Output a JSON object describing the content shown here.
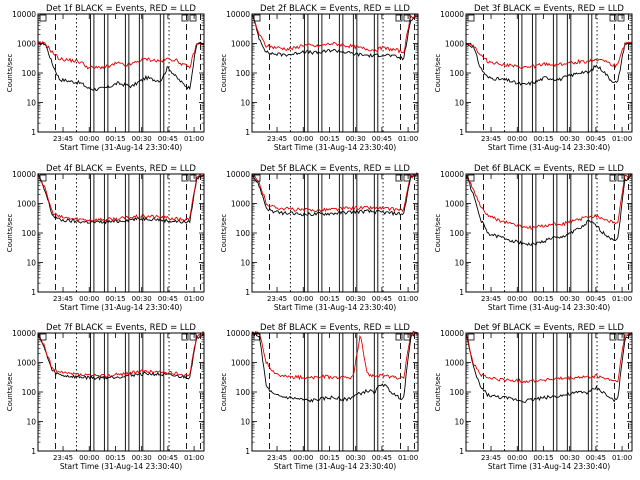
{
  "chart_data": {
    "type": "line",
    "panels": [
      {
        "title": "Det 1f BLACK = Events, RED = LLD",
        "red_base": 240,
        "black_base": 55,
        "red_values": [
          1000,
          1000,
          500,
          300,
          280,
          260,
          230,
          150,
          150,
          160,
          170,
          220,
          180,
          200,
          260,
          300,
          270,
          250,
          300,
          280,
          200,
          150,
          1000,
          1000
        ],
        "black_values": [
          1000,
          1000,
          200,
          60,
          55,
          50,
          45,
          30,
          28,
          30,
          35,
          45,
          40,
          35,
          50,
          70,
          60,
          55,
          160,
          80,
          45,
          30,
          1000,
          1000
        ]
      },
      {
        "title": "Det 2f BLACK = Events, RED = LLD",
        "red_base": 700,
        "red_values": [
          10000,
          2000,
          800,
          750,
          700,
          650,
          700,
          900,
          850,
          800,
          900,
          1000,
          950,
          850,
          800,
          700,
          650,
          600,
          700,
          650,
          600,
          500,
          8000,
          10000
        ],
        "black_values": [
          10000,
          1500,
          500,
          450,
          420,
          420,
          450,
          550,
          500,
          480,
          520,
          600,
          560,
          500,
          450,
          420,
          400,
          380,
          420,
          400,
          350,
          300,
          6000,
          10000
        ]
      },
      {
        "title": "Det 3f BLACK = Events, RED = LLD",
        "red_values": [
          1000,
          900,
          400,
          250,
          220,
          200,
          180,
          160,
          150,
          160,
          180,
          200,
          190,
          200,
          210,
          230,
          250,
          240,
          300,
          280,
          200,
          170,
          1000,
          1000
        ],
        "black_values": [
          1000,
          800,
          150,
          70,
          65,
          60,
          55,
          45,
          40,
          45,
          55,
          70,
          65,
          60,
          75,
          90,
          110,
          100,
          180,
          120,
          60,
          45,
          1000,
          1000
        ]
      },
      {
        "title": "Det 4f BLACK = Events, RED = LLD",
        "red_values": [
          10000,
          3000,
          500,
          350,
          320,
          300,
          290,
          280,
          280,
          285,
          290,
          300,
          320,
          340,
          360,
          370,
          360,
          340,
          320,
          300,
          290,
          280,
          8000,
          10000
        ],
        "black_values": [
          10000,
          2500,
          400,
          280,
          260,
          250,
          240,
          235,
          230,
          235,
          240,
          250,
          270,
          290,
          300,
          310,
          300,
          280,
          260,
          250,
          240,
          230,
          7000,
          10000
        ]
      },
      {
        "title": "Det 5f BLACK = Events, RED = LLD",
        "red_values": [
          10000,
          5000,
          1000,
          750,
          700,
          650,
          620,
          600,
          590,
          600,
          610,
          630,
          650,
          680,
          700,
          720,
          720,
          700,
          680,
          650,
          630,
          600,
          9000,
          10000
        ],
        "black_values": [
          10000,
          4000,
          700,
          520,
          480,
          460,
          450,
          440,
          430,
          440,
          450,
          460,
          480,
          500,
          520,
          540,
          540,
          520,
          500,
          480,
          460,
          440,
          8000,
          10000
        ]
      },
      {
        "title": "Det 6f BLACK = Events, RED = LLD",
        "red_values": [
          10000,
          3000,
          800,
          400,
          300,
          250,
          220,
          180,
          160,
          150,
          160,
          180,
          200,
          190,
          220,
          260,
          300,
          350,
          400,
          300,
          250,
          200,
          8000,
          10000
        ],
        "black_values": [
          10000,
          2000,
          300,
          100,
          80,
          70,
          60,
          50,
          45,
          40,
          45,
          55,
          70,
          65,
          90,
          120,
          150,
          250,
          180,
          100,
          70,
          55,
          6000,
          10000
        ]
      },
      {
        "title": "Det 7f BLACK = Events, RED = LLD",
        "red_values": [
          10000,
          3000,
          600,
          450,
          420,
          400,
          380,
          360,
          350,
          355,
          370,
          390,
          420,
          450,
          480,
          500,
          490,
          470,
          450,
          420,
          400,
          380,
          8000,
          10000
        ],
        "black_values": [
          10000,
          2500,
          500,
          380,
          350,
          330,
          320,
          310,
          300,
          305,
          315,
          330,
          350,
          380,
          400,
          420,
          410,
          390,
          370,
          350,
          330,
          310,
          7000,
          10000
        ]
      },
      {
        "title": "Det 8f BLACK = Events, RED = LLD",
        "red_values": [
          10000,
          10000,
          1000,
          500,
          350,
          330,
          320,
          310,
          300,
          310,
          330,
          320,
          310,
          300,
          320,
          8000,
          400,
          350,
          380,
          320,
          300,
          280,
          10000,
          10000
        ],
        "black_values": [
          10000,
          8000,
          150,
          80,
          70,
          65,
          60,
          55,
          50,
          55,
          60,
          65,
          60,
          55,
          70,
          90,
          110,
          100,
          200,
          120,
          70,
          60,
          8000,
          10000
        ]
      },
      {
        "title": "Det 9f BLACK = Events, RED = LLD",
        "red_values": [
          10000,
          1000,
          400,
          300,
          280,
          260,
          250,
          240,
          230,
          240,
          250,
          260,
          270,
          280,
          290,
          300,
          320,
          310,
          350,
          300,
          260,
          220,
          8000,
          10000
        ],
        "black_values": [
          10000,
          700,
          150,
          80,
          70,
          65,
          60,
          55,
          50,
          55,
          60,
          65,
          70,
          75,
          80,
          90,
          100,
          95,
          140,
          100,
          60,
          50,
          6000,
          10000
        ]
      }
    ],
    "y_tick_labels": [
      "1",
      "10",
      "100",
      "1000",
      "10000"
    ],
    "ylim": [
      1,
      10000
    ],
    "y_scale": "log",
    "x_tick_labels": [
      "23:45",
      "00:00",
      "00:15",
      "00:30",
      "00:45",
      "01:00"
    ],
    "x_tick_minutes": [
      14.33,
      29.33,
      44.33,
      59.33,
      74.33,
      89.33
    ],
    "xlim_minutes": [
      0,
      95
    ],
    "xlabel": "Start Time (31-Aug-14 23:30:40)",
    "ylabel": "Counts/sec",
    "vertical_lines": {
      "dashed": [
        10,
        85,
        93
      ],
      "dotted": [
        22,
        75
      ],
      "solid": [
        30,
        32,
        38,
        40,
        50,
        52,
        58,
        60,
        70,
        72
      ]
    },
    "series": [
      {
        "name": "BLACK = Events",
        "color": "#000000"
      },
      {
        "name": "RED = LLD",
        "color": "#e00000"
      }
    ]
  }
}
